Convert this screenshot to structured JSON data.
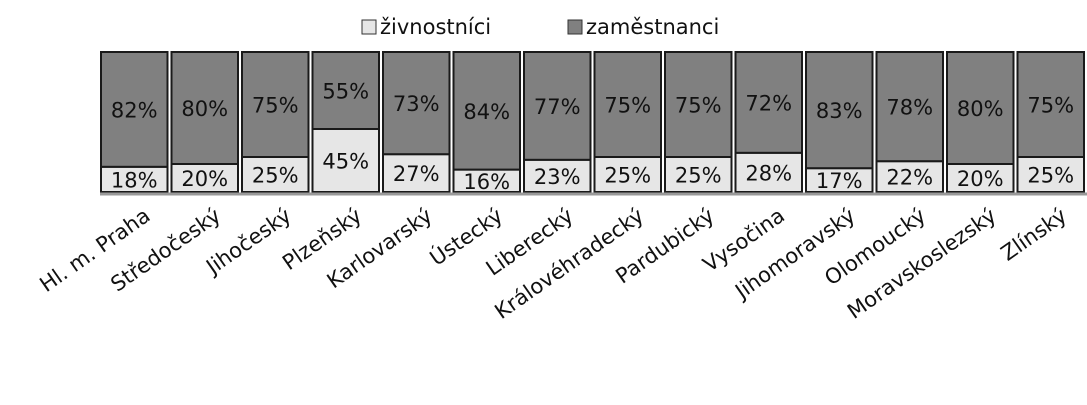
{
  "chart_data": {
    "type": "stacked_bar",
    "categories": [
      "Hl. m. Praha",
      "Středočeský",
      "Jihočeský",
      "Plzeňský",
      "Karlovarský",
      "Ústecký",
      "Liberecký",
      "Královéhradecký",
      "Pardubický",
      "Vysočina",
      "Jihomoravský",
      "Olomoucký",
      "Moravskoslezský",
      "Zlínský"
    ],
    "series": [
      {
        "name": "živnostníci",
        "color": "#e6e6e6",
        "values": [
          18,
          20,
          25,
          45,
          27,
          16,
          23,
          25,
          25,
          28,
          17,
          22,
          20,
          25
        ],
        "value_labels": [
          "18%",
          "20%",
          "25%",
          "45%",
          "27%",
          "16%",
          "23%",
          "25%",
          "25%",
          "28%",
          "17%",
          "22%",
          "20%",
          "25%"
        ]
      },
      {
        "name": "zaměstnanci",
        "color": "#808080",
        "values": [
          82,
          80,
          75,
          55,
          73,
          84,
          77,
          75,
          75,
          72,
          83,
          78,
          80,
          75
        ],
        "value_labels": [
          "82%",
          "80%",
          "75%",
          "55%",
          "73%",
          "84%",
          "77%",
          "75%",
          "75%",
          "72%",
          "83%",
          "78%",
          "80%",
          "75%"
        ]
      }
    ],
    "legend": "top"
  }
}
